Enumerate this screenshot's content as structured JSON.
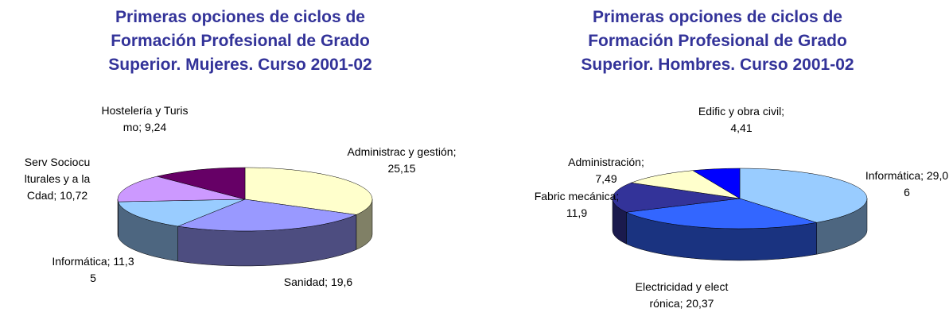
{
  "chart_data": [
    {
      "type": "pie3d",
      "title": "Primeras opciones de ciclos de Formación Profesional de Grado Superior. Mujeres. Curso 2001-02",
      "values": [
        25.15,
        19.6,
        11.35,
        10.72,
        9.24
      ],
      "value_labels": [
        "Administrac y gestión; 25,15",
        "Sanidad; 19,6",
        "Informática; 11,35",
        "Serv Socioculturales y a la Cdad; 10,72",
        "Hostelería y Turismo; 9,24"
      ],
      "colors": [
        "#ffffcc",
        "#9999ff",
        "#99ccff",
        "#cc99ff",
        "#660066"
      ]
    },
    {
      "type": "pie3d",
      "title": "Primeras opciones de ciclos de Formación Profesional de Grado Superior. Hombres. Curso 2001-02",
      "values": [
        29.06,
        20.37,
        11.9,
        7.49,
        4.41
      ],
      "value_labels": [
        "Informática; 29,06",
        "Electricidad y electrónica; 20,37",
        "Fabric mecánica; 11,9",
        "Administración; 7,49",
        "Edific y obra civil; 4,41"
      ],
      "colors": [
        "#99ccff",
        "#3366ff",
        "#333399",
        "#ffffcc",
        "#0000ff"
      ]
    }
  ]
}
